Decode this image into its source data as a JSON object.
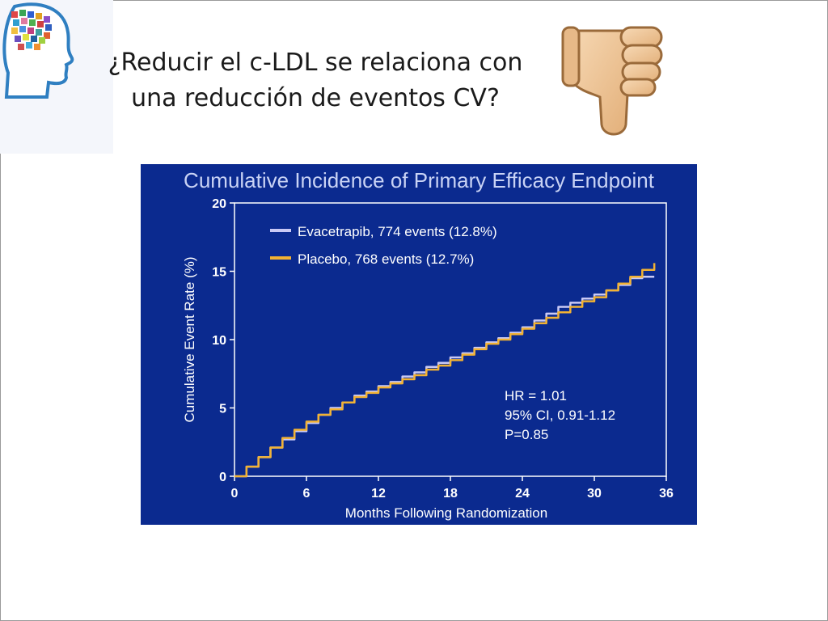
{
  "slide": {
    "title_line1": "¿Reducir el c-LDL se relaciona con",
    "title_line2": "una reducción de eventos CV?"
  },
  "icons": {
    "logo": "head-brain-logo-icon",
    "reaction": "thumbs-down-icon"
  },
  "colors": {
    "chart_background": "#0b2a8f",
    "evacetrapib_line": "#c9c9f5",
    "placebo_line": "#f2b233",
    "chart_title": "#c9d3f5",
    "axis_text": "#ffffff"
  },
  "chart_data": {
    "type": "line",
    "title": "Cumulative Incidence of Primary Efficacy Endpoint",
    "xlabel": "Months Following Randomization",
    "ylabel": "Cumulative Event Rate (%)",
    "xlim": [
      0,
      36
    ],
    "ylim": [
      0,
      20
    ],
    "xticks": [
      0,
      6,
      12,
      18,
      24,
      30,
      36
    ],
    "yticks": [
      0,
      5,
      10,
      15,
      20
    ],
    "grid": false,
    "legend_position": "top-left",
    "series": [
      {
        "name": "Evacetrapib, 774 events (12.8%)",
        "color": "#c9c9f5",
        "x": [
          0,
          1,
          2,
          3,
          4,
          5,
          6,
          7,
          8,
          9,
          10,
          11,
          12,
          13,
          14,
          15,
          16,
          17,
          18,
          19,
          20,
          21,
          22,
          23,
          24,
          25,
          26,
          27,
          28,
          29,
          30,
          31,
          32,
          33,
          34,
          35
        ],
        "y": [
          0,
          0.7,
          1.4,
          2.1,
          2.7,
          3.3,
          3.9,
          4.5,
          5.0,
          5.4,
          5.9,
          6.2,
          6.6,
          6.9,
          7.3,
          7.6,
          8.0,
          8.3,
          8.7,
          9.0,
          9.4,
          9.8,
          10.1,
          10.5,
          10.9,
          11.4,
          11.9,
          12.4,
          12.7,
          13.0,
          13.3,
          13.6,
          14.0,
          14.5,
          14.6,
          14.6
        ]
      },
      {
        "name": "Placebo, 768 events (12.7%)",
        "color": "#f2b233",
        "x": [
          0,
          1,
          2,
          3,
          4,
          5,
          6,
          7,
          8,
          9,
          10,
          11,
          12,
          13,
          14,
          15,
          16,
          17,
          18,
          19,
          20,
          21,
          22,
          23,
          24,
          25,
          26,
          27,
          28,
          29,
          30,
          31,
          32,
          33,
          34,
          35
        ],
        "y": [
          0,
          0.7,
          1.4,
          2.1,
          2.8,
          3.4,
          4.0,
          4.5,
          4.9,
          5.4,
          5.8,
          6.1,
          6.5,
          6.8,
          7.1,
          7.4,
          7.8,
          8.1,
          8.5,
          8.9,
          9.3,
          9.7,
          10.0,
          10.4,
          10.8,
          11.2,
          11.6,
          12.0,
          12.4,
          12.8,
          13.1,
          13.6,
          14.1,
          14.6,
          15.1,
          15.6
        ]
      }
    ],
    "annotations": [
      "HR = 1.01",
      "95% CI, 0.91-1.12",
      "P=0.85"
    ]
  }
}
